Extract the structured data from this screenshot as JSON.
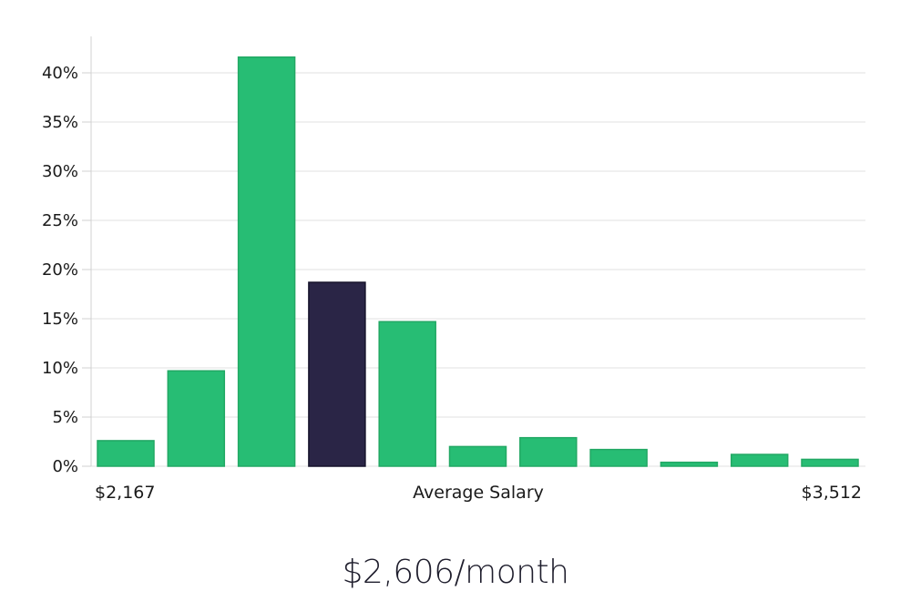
{
  "chart_data": {
    "type": "bar",
    "title": "",
    "ylabel": "",
    "xlabel": "Average Salary",
    "x_range_labels": {
      "min": "$2,167",
      "max": "$3,512"
    },
    "ylim": [
      0,
      43.5
    ],
    "y_ticks": [
      0,
      5,
      10,
      15,
      20,
      25,
      30,
      35,
      40
    ],
    "y_tick_labels": [
      "0%",
      "5%",
      "10%",
      "15%",
      "20%",
      "25%",
      "30%",
      "35%",
      "40%"
    ],
    "values": [
      2.6,
      9.7,
      41.6,
      18.7,
      14.7,
      2.0,
      2.9,
      1.7,
      0.4,
      1.2,
      0.7
    ],
    "highlight_index": 3,
    "grid": true,
    "legend": "none"
  },
  "colors": {
    "bar": "#27bd74",
    "bar_border": "#22a864",
    "highlight": "#2a2546",
    "highlight_border": "#16132b"
  },
  "caption": "$2,606/month"
}
